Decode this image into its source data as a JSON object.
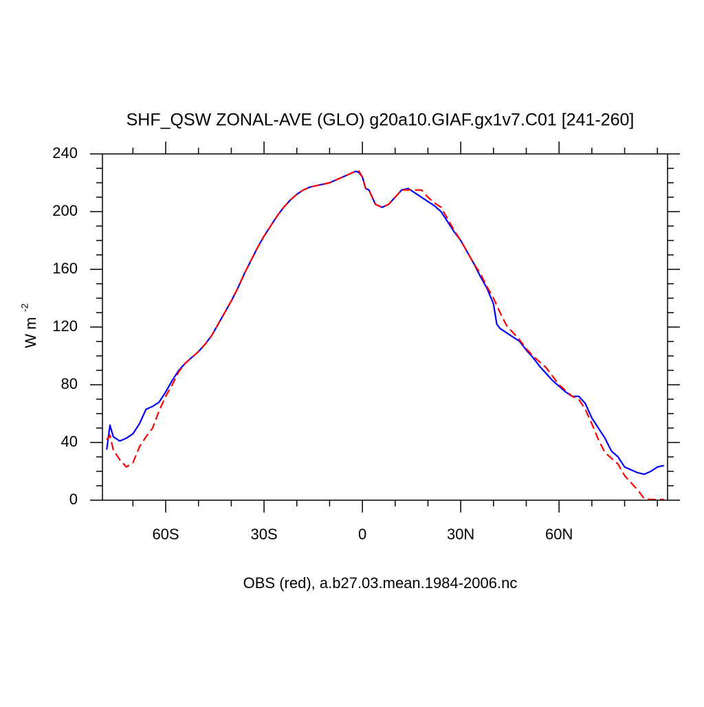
{
  "chart_data": {
    "type": "line",
    "title": "SHF_QSW ZONAL-AVE (GLO) g20a10.GIAF.gx1v7.C01 [241-260]",
    "xlabel": "OBS (red), a.b27.03.mean.1984-2006.nc",
    "ylabel": "W m",
    "ylabel_sup": "-2",
    "x": [
      -78,
      -77,
      -76,
      -74,
      -72,
      -70,
      -68,
      -66,
      -64,
      -62,
      -60,
      -58,
      -56,
      -54,
      -52,
      -50,
      -48,
      -46,
      -44,
      -42,
      -40,
      -38,
      -36,
      -34,
      -32,
      -30,
      -28,
      -26,
      -24,
      -22,
      -20,
      -18,
      -16,
      -14,
      -12,
      -10,
      -8,
      -6,
      -4,
      -2,
      -1,
      0,
      1,
      2,
      3,
      4,
      6,
      8,
      10,
      12,
      14,
      16,
      18,
      20,
      22,
      24,
      26,
      28,
      30,
      32,
      34,
      36,
      38,
      40,
      41,
      42,
      44,
      46,
      48,
      50,
      52,
      54,
      56,
      58,
      60,
      62,
      64,
      66,
      68,
      70,
      72,
      74,
      76,
      78,
      80,
      82,
      84,
      86,
      88,
      90,
      92
    ],
    "series": [
      {
        "color": "#0000ff",
        "dashed": false,
        "values": [
          35,
          52,
          44,
          41,
          43,
          46,
          53,
          63,
          65,
          68,
          75,
          83,
          90,
          95,
          99,
          103,
          108,
          114,
          122,
          130,
          138,
          147,
          157,
          166,
          175,
          183,
          190,
          197,
          203,
          208,
          212,
          215,
          217,
          218,
          219,
          220,
          222,
          224,
          226,
          228,
          227,
          224,
          216,
          215,
          210,
          205,
          203,
          205,
          210,
          215,
          216,
          213,
          210,
          207,
          204,
          200,
          193,
          186,
          180,
          172,
          164,
          155,
          147,
          136,
          122,
          119,
          116,
          113,
          110,
          104,
          99,
          93,
          88,
          83,
          79,
          75,
          72,
          72,
          67,
          57,
          50,
          43,
          34,
          30,
          23,
          21,
          19,
          18,
          20,
          23,
          24
        ]
      },
      {
        "color": "#ff0000",
        "dashed": true,
        "values": [
          42,
          45,
          35,
          28,
          23,
          26,
          37,
          44,
          50,
          62,
          72,
          80,
          89,
          95,
          99,
          103,
          108,
          114,
          122,
          130,
          138,
          147,
          157,
          166,
          175,
          183,
          190,
          197,
          203,
          208,
          212,
          215,
          217,
          218,
          219,
          220,
          222,
          224,
          226,
          228,
          228,
          224,
          216,
          215,
          210,
          205,
          203,
          205,
          210,
          215,
          215,
          215,
          215,
          210,
          206,
          203,
          195,
          187,
          180,
          172,
          164,
          157,
          148,
          140,
          135,
          130,
          121,
          116,
          111,
          105,
          100,
          96,
          92,
          86,
          80,
          76,
          72,
          70,
          63,
          53,
          42,
          33,
          29,
          25,
          17,
          12,
          7,
          1,
          0.5,
          0.5,
          0.5
        ]
      }
    ],
    "xlim": [
      -79.3,
      93.1
    ],
    "ylim": [
      0,
      240
    ],
    "xticks": [
      {
        "value": -60,
        "label": "60S"
      },
      {
        "value": -30,
        "label": "30S"
      },
      0,
      {
        "value": 30,
        "label": "30N"
      },
      {
        "value": 60,
        "label": "60N"
      }
    ],
    "xminorticks": [
      -70,
      -50,
      -40,
      -20,
      -10,
      10,
      20,
      40,
      50,
      70,
      80,
      90
    ],
    "yticks": [
      0,
      40,
      80,
      120,
      160,
      200,
      240
    ],
    "yminorticks": [
      10,
      20,
      30,
      50,
      60,
      70,
      90,
      100,
      110,
      130,
      140,
      150,
      170,
      180,
      190,
      210,
      220,
      230
    ]
  }
}
